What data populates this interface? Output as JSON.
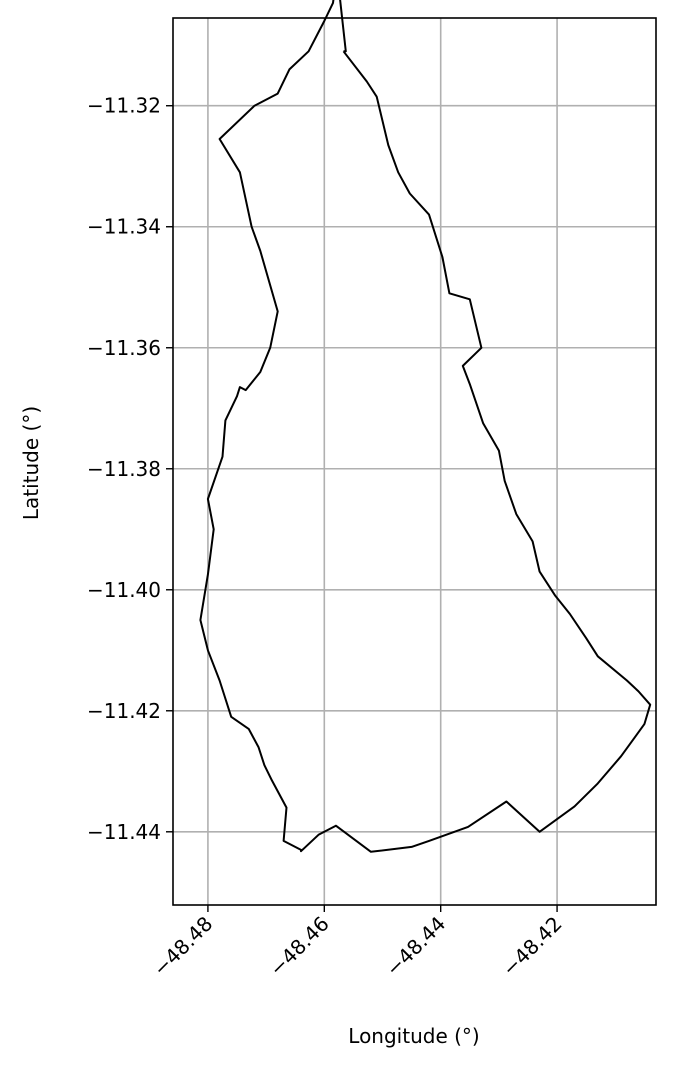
{
  "chart_data": {
    "type": "line",
    "title": "",
    "xlabel": "Longitude (°)",
    "ylabel": "Latitude (°)",
    "xlim": [
      -48.486,
      -48.403
    ],
    "ylim": [
      -11.4521,
      -11.3055
    ],
    "xticks": [
      -48.48,
      -48.46,
      -48.44,
      -48.42
    ],
    "xtick_labels": [
      "−48.48",
      "−48.46",
      "−48.44",
      "−48.42"
    ],
    "yticks": [
      -11.32,
      -11.34,
      -11.36,
      -11.38,
      -11.4,
      -11.42,
      -11.44
    ],
    "ytick_labels": [
      "−11.32",
      "−11.34",
      "−11.36",
      "−11.38",
      "−11.40",
      "−11.42",
      "−11.44"
    ],
    "grid": true,
    "series": [
      {
        "color": "#000000",
        "x": [
          -48.4567,
          -48.4527,
          -48.451,
          -48.449,
          -48.4473,
          -48.4453,
          -48.442,
          -48.4397,
          -48.4385,
          -48.435,
          -48.433,
          -48.4362,
          -48.435,
          -48.4327,
          -48.43,
          -48.429,
          -48.427,
          -48.4242,
          -48.423,
          -48.4203,
          -48.4178,
          -48.415,
          -48.413,
          -48.408,
          -48.406,
          -48.404,
          -48.405,
          -48.409,
          -48.413,
          -48.417,
          -48.423,
          -48.4287,
          -48.4353,
          -48.442,
          -48.445,
          -48.452,
          -48.458,
          -48.461,
          -48.464,
          -48.464,
          -48.467,
          -48.4665,
          -48.469,
          -48.4703,
          -48.4713,
          -48.473,
          -48.476,
          -48.478,
          -48.48,
          -48.4813,
          -48.48,
          -48.479,
          -48.48,
          -48.4775,
          -48.477,
          -48.475,
          -48.4745,
          -48.4735,
          -48.471,
          -48.4693,
          -48.468,
          -48.471,
          -48.4725,
          -48.4745,
          -48.478,
          -48.472,
          -48.468,
          -48.466,
          -48.4627,
          -48.46,
          -48.4585,
          -48.4578,
          -48.4563,
          -48.4567
        ],
        "y": [
          -11.311,
          -11.316,
          -11.3185,
          -11.3265,
          -11.331,
          -11.3345,
          -11.338,
          -11.345,
          -11.351,
          -11.352,
          -11.36,
          -11.363,
          -11.366,
          -11.3725,
          -11.377,
          -11.382,
          -11.3875,
          -11.392,
          -11.397,
          -11.401,
          -11.404,
          -11.408,
          -11.411,
          -11.415,
          -11.4168,
          -11.419,
          -11.4222,
          -11.4275,
          -11.432,
          -11.4358,
          -11.44,
          -11.435,
          -11.4392,
          -11.4415,
          -11.4425,
          -11.4433,
          -11.439,
          -11.4405,
          -11.4432,
          -11.443,
          -11.4415,
          -11.436,
          -11.4315,
          -11.429,
          -11.426,
          -11.423,
          -11.421,
          -11.415,
          -11.41,
          -11.405,
          -11.3975,
          -11.39,
          -11.385,
          -11.378,
          -11.372,
          -11.368,
          -11.3665,
          -11.367,
          -11.364,
          -11.36,
          -11.354,
          -11.344,
          -11.34,
          -11.331,
          -11.3255,
          -11.32,
          -11.318,
          -11.314,
          -11.311,
          -11.306,
          -11.303,
          -11.298,
          -11.311,
          -11.311
        ]
      }
    ]
  }
}
